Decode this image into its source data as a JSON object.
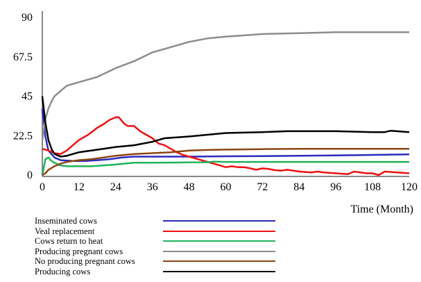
{
  "chart_data": {
    "type": "line",
    "xlabel": "Time (Month)",
    "ylabel": "",
    "xlim": [
      0,
      120
    ],
    "ylim": [
      0,
      90
    ],
    "x_ticks": [
      "0",
      "12",
      "24",
      "36",
      "48",
      "60",
      "72",
      "84",
      "96",
      "108",
      "120"
    ],
    "y_ticks": [
      "0",
      "22.5",
      "45",
      "67.5",
      "90"
    ],
    "legend_position": "bottom-left",
    "grid": false,
    "series": [
      {
        "name": "Inseminated cows",
        "color": "#2b2bbf",
        "points": [
          [
            0,
            38
          ],
          [
            1,
            22
          ],
          [
            2,
            14
          ],
          [
            4,
            10
          ],
          [
            6,
            8.5
          ],
          [
            10,
            8
          ],
          [
            14,
            8
          ],
          [
            18,
            8.5
          ],
          [
            22,
            9
          ],
          [
            26,
            10
          ],
          [
            30,
            10.5
          ],
          [
            36,
            10.5
          ],
          [
            48,
            10.5
          ],
          [
            60,
            10.7
          ],
          [
            72,
            10.8
          ],
          [
            84,
            11
          ],
          [
            96,
            11.2
          ],
          [
            108,
            11.5
          ],
          [
            120,
            11.8
          ]
        ]
      },
      {
        "name": "Veal replacement",
        "color": "#ee1111",
        "points": [
          [
            0,
            15
          ],
          [
            2,
            14
          ],
          [
            4,
            12.5
          ],
          [
            6,
            12
          ],
          [
            8,
            14
          ],
          [
            10,
            17
          ],
          [
            12,
            20
          ],
          [
            15,
            23
          ],
          [
            18,
            27
          ],
          [
            20,
            29
          ],
          [
            22,
            31.5
          ],
          [
            24,
            33
          ],
          [
            25,
            33
          ],
          [
            27,
            29
          ],
          [
            28,
            28
          ],
          [
            30,
            28
          ],
          [
            32,
            25
          ],
          [
            34,
            23
          ],
          [
            36,
            21
          ],
          [
            38,
            18
          ],
          [
            40,
            17
          ],
          [
            42,
            15
          ],
          [
            44,
            13
          ],
          [
            46,
            11.5
          ],
          [
            48,
            10.5
          ],
          [
            50,
            9.5
          ],
          [
            52,
            8.5
          ],
          [
            54,
            7.5
          ],
          [
            56,
            6.5
          ],
          [
            58,
            5.5
          ],
          [
            60,
            4.5
          ],
          [
            62,
            5
          ],
          [
            64,
            4.5
          ],
          [
            66,
            4.5
          ],
          [
            68,
            3.8
          ],
          [
            70,
            3
          ],
          [
            72,
            3.8
          ],
          [
            74,
            3.5
          ],
          [
            76,
            2.8
          ],
          [
            78,
            2.5
          ],
          [
            80,
            3
          ],
          [
            84,
            2
          ],
          [
            88,
            1.5
          ],
          [
            90,
            2
          ],
          [
            92,
            1.5
          ],
          [
            96,
            1
          ],
          [
            100,
            0.5
          ],
          [
            102,
            2
          ],
          [
            104,
            1.5
          ],
          [
            106,
            1
          ],
          [
            108,
            1
          ],
          [
            110,
            0
          ],
          [
            112,
            2
          ],
          [
            116,
            1.5
          ],
          [
            120,
            1
          ]
        ]
      },
      {
        "name": "Cows return to heat",
        "color": "#1fb35a",
        "points": [
          [
            0,
            0
          ],
          [
            1,
            9
          ],
          [
            2,
            10
          ],
          [
            3,
            8
          ],
          [
            4,
            7
          ],
          [
            6,
            5.5
          ],
          [
            8,
            5
          ],
          [
            12,
            5
          ],
          [
            16,
            5
          ],
          [
            20,
            5.5
          ],
          [
            24,
            6
          ],
          [
            30,
            7
          ],
          [
            36,
            7
          ],
          [
            48,
            7.2
          ],
          [
            54,
            7.3
          ],
          [
            56,
            7.6
          ],
          [
            60,
            7.5
          ],
          [
            72,
            7.5
          ],
          [
            84,
            7.5
          ],
          [
            96,
            7.5
          ],
          [
            108,
            7.5
          ],
          [
            120,
            7.5
          ]
        ]
      },
      {
        "name": "Producing pregnant cows",
        "color": "#8c8c8c",
        "points": [
          [
            0,
            20
          ],
          [
            1,
            32
          ],
          [
            2,
            38
          ],
          [
            3,
            42
          ],
          [
            4,
            45
          ],
          [
            6,
            48
          ],
          [
            8,
            51
          ],
          [
            12,
            53
          ],
          [
            18,
            56
          ],
          [
            24,
            61
          ],
          [
            30,
            65
          ],
          [
            36,
            70
          ],
          [
            42,
            73
          ],
          [
            48,
            76
          ],
          [
            54,
            78
          ],
          [
            60,
            79
          ],
          [
            72,
            80.5
          ],
          [
            84,
            81
          ],
          [
            96,
            81.5
          ],
          [
            108,
            81.5
          ],
          [
            120,
            81.5
          ]
        ]
      },
      {
        "name": "No producing pregnant cows",
        "color": "#8b4513",
        "points": [
          [
            0,
            0
          ],
          [
            1,
            1
          ],
          [
            2,
            3
          ],
          [
            4,
            5
          ],
          [
            6,
            6.5
          ],
          [
            8,
            7.5
          ],
          [
            10,
            8
          ],
          [
            12,
            8.5
          ],
          [
            16,
            9
          ],
          [
            20,
            10
          ],
          [
            24,
            11
          ],
          [
            30,
            12
          ],
          [
            36,
            12.5
          ],
          [
            42,
            13
          ],
          [
            48,
            14
          ],
          [
            54,
            14.3
          ],
          [
            60,
            14.5
          ],
          [
            72,
            14.8
          ],
          [
            84,
            15
          ],
          [
            96,
            15
          ],
          [
            108,
            15
          ],
          [
            120,
            15
          ]
        ]
      },
      {
        "name": "Producing cows",
        "color": "#000000",
        "points": [
          [
            0,
            45
          ],
          [
            1,
            30
          ],
          [
            2,
            20
          ],
          [
            3,
            15
          ],
          [
            4,
            12
          ],
          [
            6,
            10.5
          ],
          [
            8,
            11
          ],
          [
            10,
            12
          ],
          [
            12,
            13
          ],
          [
            16,
            14
          ],
          [
            20,
            15
          ],
          [
            24,
            16
          ],
          [
            30,
            17
          ],
          [
            36,
            19
          ],
          [
            40,
            21
          ],
          [
            44,
            21.5
          ],
          [
            48,
            22
          ],
          [
            54,
            23
          ],
          [
            60,
            24
          ],
          [
            72,
            24.5
          ],
          [
            80,
            25
          ],
          [
            96,
            25
          ],
          [
            108,
            24.5
          ],
          [
            112,
            24.5
          ],
          [
            114,
            25.3
          ],
          [
            120,
            24.5
          ]
        ]
      }
    ]
  }
}
